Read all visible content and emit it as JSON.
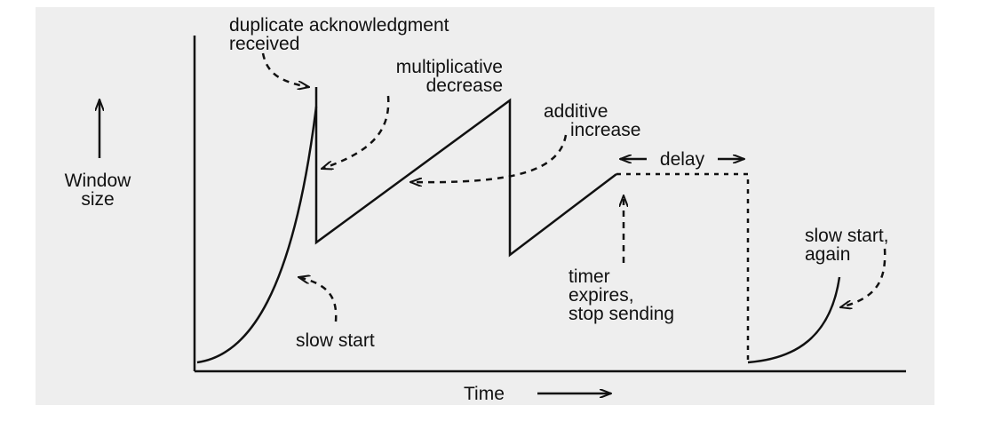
{
  "colors": {
    "panel_bg": "#eeeeee",
    "ink": "#111111"
  },
  "axes": {
    "x_label": "Time",
    "y_label_line1": "Window",
    "y_label_line2": "size"
  },
  "labels": {
    "dup_ack_line1": "duplicate acknowledgment",
    "dup_ack_line2": "received",
    "mult_dec_line1": "multiplicative",
    "mult_dec_line2": "decrease",
    "add_inc_line1": "additive",
    "add_inc_line2": "increase",
    "delay": "delay",
    "slow_start": "slow start",
    "slow_start_again_line1": "slow start,",
    "slow_start_again_line2": "again",
    "timer_line1": "timer",
    "timer_line2": "expires,",
    "timer_line3": "stop sending"
  }
}
